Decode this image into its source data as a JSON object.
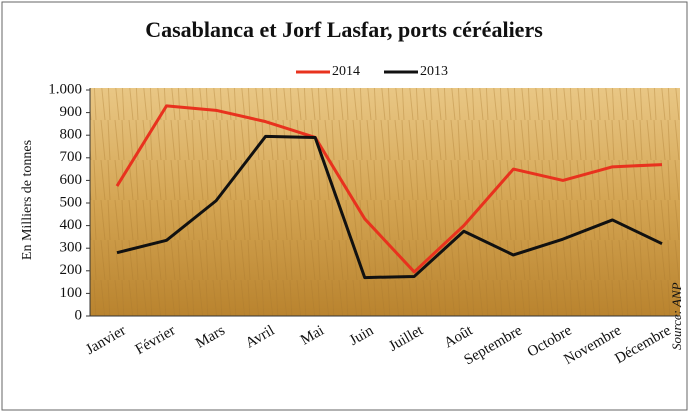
{
  "chart_data": {
    "type": "line",
    "title": "Casablanca et Jorf Lasfar, ports céréaliers",
    "y_label": "En Milliers de tonnes",
    "source": "Source: ANP",
    "categories": [
      "Janvier",
      "Février",
      "Mars",
      "Avril",
      "Mai",
      "Juin",
      "Juillet",
      "Août",
      "Septembre",
      "Octobre",
      "Novembre",
      "Décembre"
    ],
    "series": [
      {
        "name": "2014",
        "color": "#e8321e",
        "values": [
          575,
          930,
          910,
          860,
          790,
          430,
          195,
          400,
          650,
          600,
          660,
          670
        ]
      },
      {
        "name": "2013",
        "color": "#111111",
        "values": [
          280,
          335,
          510,
          795,
          790,
          170,
          175,
          375,
          270,
          340,
          425,
          320
        ]
      }
    ],
    "ylim": [
      0,
      1000
    ],
    "yticks": [
      0,
      100,
      200,
      300,
      400,
      500,
      600,
      700,
      800,
      900,
      {
        "value": 1000,
        "label": "1.000"
      }
    ]
  }
}
